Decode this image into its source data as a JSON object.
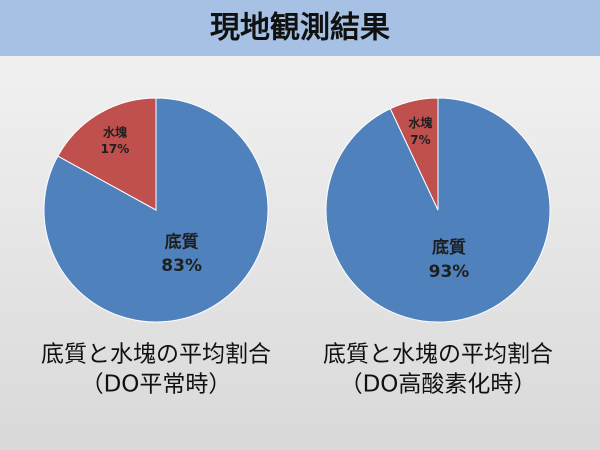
{
  "title": "現地観測結果",
  "chart_data": [
    {
      "type": "pie",
      "title": "底質と水塊の平均割合",
      "subtitle": "（DO平常時）",
      "categories": [
        "底質",
        "水塊"
      ],
      "values": [
        83,
        17
      ],
      "value_labels": [
        "83%",
        "17%"
      ],
      "colors": [
        "#4f81bd",
        "#c0504d"
      ]
    },
    {
      "type": "pie",
      "title": "底質と水塊の平均割合",
      "subtitle": "（DO高酸素化時）",
      "categories": [
        "底質",
        "水塊"
      ],
      "values": [
        93,
        7
      ],
      "value_labels": [
        "93%",
        "7%"
      ],
      "colors": [
        "#4f81bd",
        "#c0504d"
      ]
    }
  ]
}
